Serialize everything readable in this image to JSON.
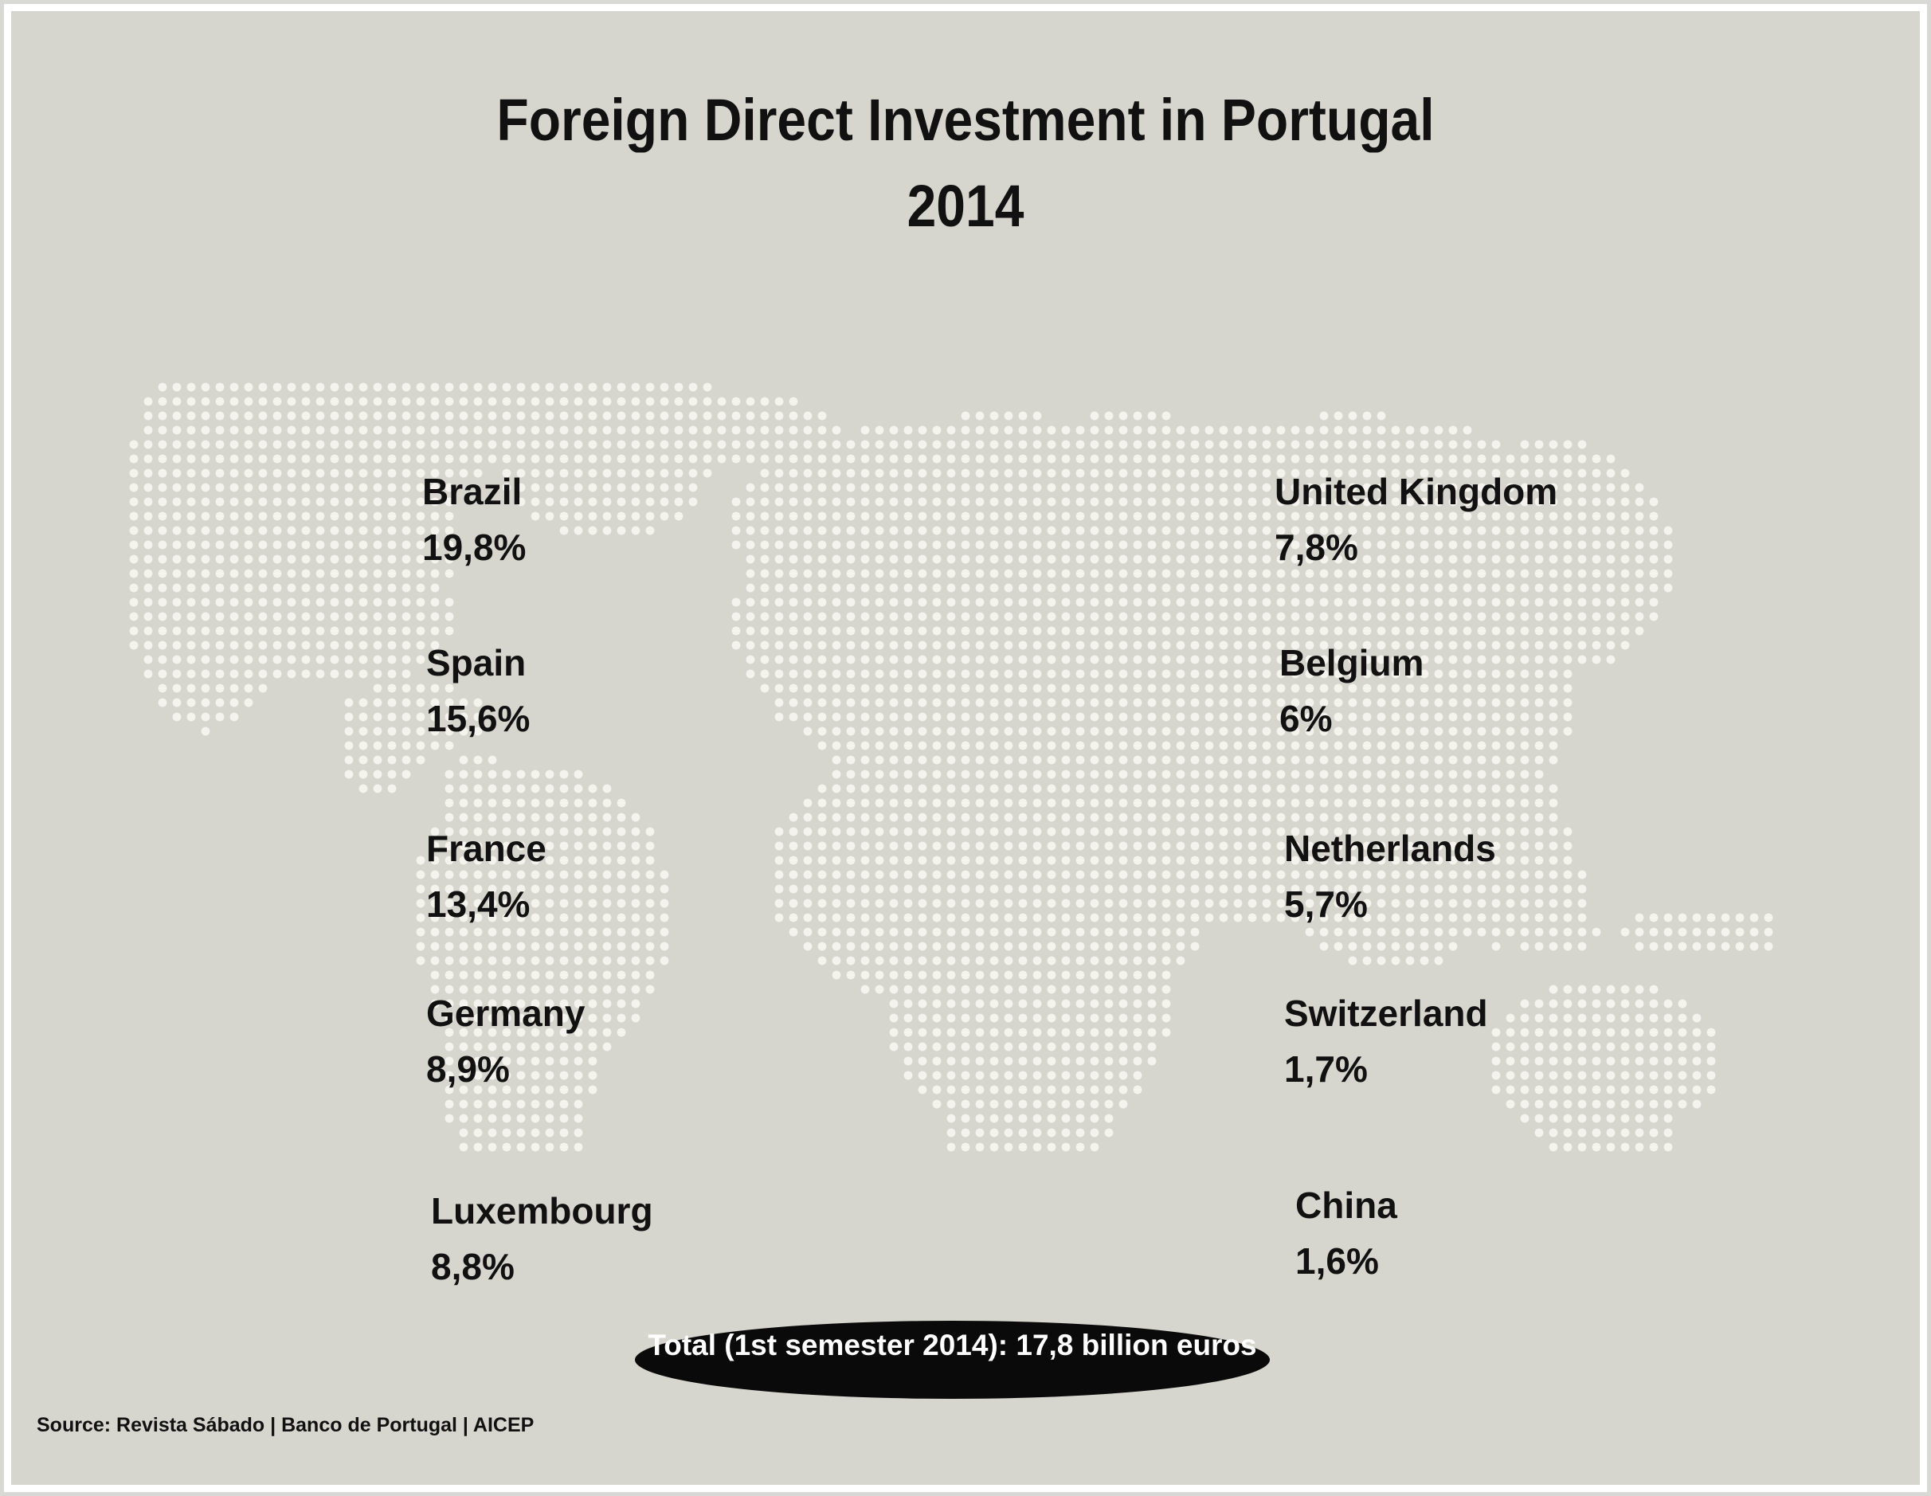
{
  "chart_data": {
    "type": "table",
    "title": "Foreign Direct Investment in Portugal",
    "subtitle": "2014",
    "categories": [
      "Brazil",
      "Spain",
      "France",
      "Germany",
      "Luxembourg",
      "United Kingdom",
      "Belgium",
      "Netherlands",
      "Switzerland",
      "China"
    ],
    "values": [
      19.8,
      15.6,
      13.4,
      8.9,
      8.8,
      7.8,
      6,
      5.7,
      1.7,
      1.6
    ],
    "value_labels": [
      "19,8%",
      "15,6%",
      "13,4%",
      "8,9%",
      "8,8%",
      "7,8%",
      "6%",
      "5,7%",
      "1,7%",
      "1,6%"
    ],
    "unit": "%",
    "total": "Total (1st semester 2014): 17,8 billion euros",
    "source": "Source: Revista Sábado | Banco de Portugal | AICEP",
    "background": "dotted world map"
  },
  "colors": {
    "background": "#d6d6ce",
    "dots": "#f4f3ee",
    "text": "#111111",
    "pill": "#0a0a0a",
    "pill_text": "#ffffff"
  }
}
